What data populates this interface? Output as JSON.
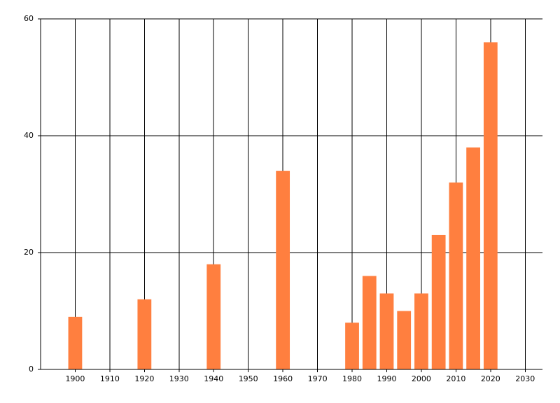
{
  "chart_data": {
    "type": "bar",
    "x": [
      1900,
      1920,
      1940,
      1960,
      1980,
      1985,
      1990,
      1995,
      2000,
      2005,
      2010,
      2015,
      2020
    ],
    "values": [
      9,
      12,
      18,
      34,
      8,
      16,
      13,
      10,
      13,
      23,
      32,
      38,
      56
    ],
    "color": "#ff7f3f",
    "xlim": [
      1890,
      2035
    ],
    "xticks": [
      1900,
      1910,
      1920,
      1930,
      1940,
      1950,
      1960,
      1970,
      1980,
      1990,
      2000,
      2010,
      2020,
      2030
    ],
    "ylim": [
      0,
      60
    ],
    "yticks": [
      0,
      20,
      40,
      60
    ],
    "grid": true
  }
}
